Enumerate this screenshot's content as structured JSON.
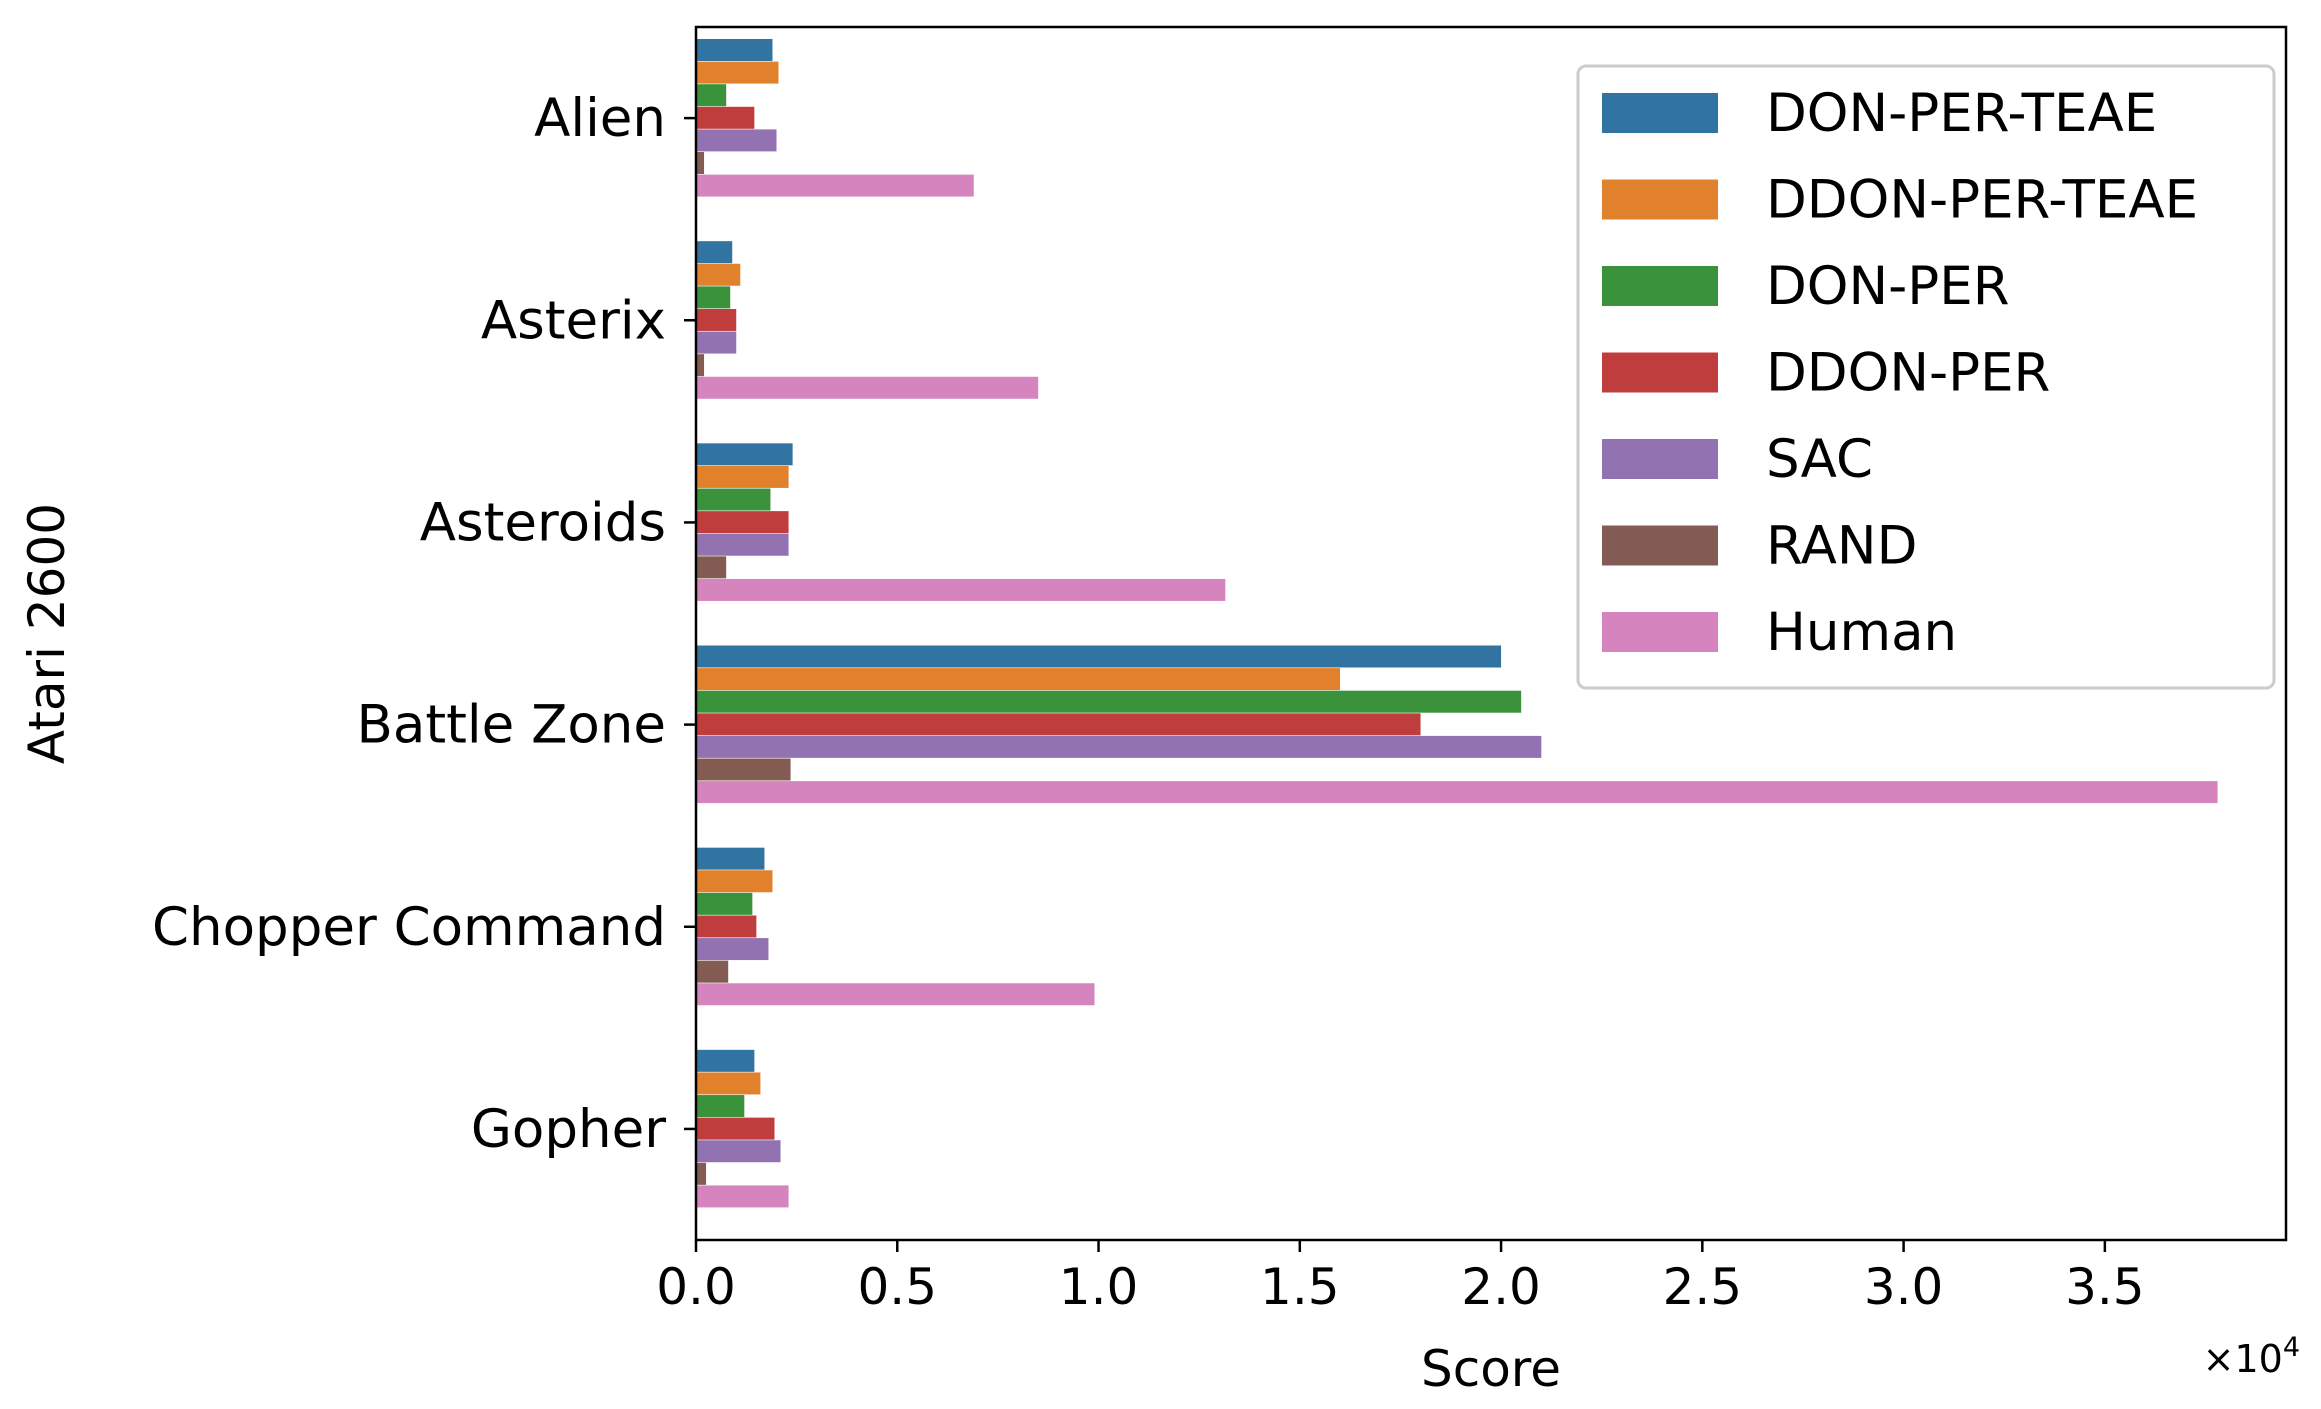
{
  "chart_data": {
    "type": "bar",
    "orientation": "horizontal",
    "ylabel": "Atari 2600",
    "xlabel": "Score",
    "x_multiplier_label": "×10",
    "x_multiplier_exponent": "4",
    "xlim": [
      0,
      39500
    ],
    "x_ticks": [
      0,
      5000,
      10000,
      15000,
      20000,
      25000,
      30000,
      35000
    ],
    "x_tick_labels": [
      "0.0",
      "0.5",
      "1.0",
      "1.5",
      "2.0",
      "2.5",
      "3.0",
      "3.5"
    ],
    "categories": [
      "Alien",
      "Asterix",
      "Asteroids",
      "Battle Zone",
      "Chopper Command",
      "Gopher"
    ],
    "legend_position": "top-right",
    "grid": false,
    "series": [
      {
        "name": "DON-PER-TEAE",
        "color": "#3274a1",
        "values": [
          1900,
          900,
          2400,
          20000,
          1700,
          1450
        ]
      },
      {
        "name": "DDON-PER-TEAE",
        "color": "#e1812c",
        "values": [
          2050,
          1100,
          2300,
          16000,
          1900,
          1600
        ]
      },
      {
        "name": "DON-PER",
        "color": "#3a923a",
        "values": [
          750,
          850,
          1850,
          20500,
          1400,
          1200
        ]
      },
      {
        "name": "DDON-PER",
        "color": "#c03d3e",
        "values": [
          1450,
          1000,
          2300,
          18000,
          1500,
          1950
        ]
      },
      {
        "name": "SAC",
        "color": "#9372b2",
        "values": [
          2000,
          1000,
          2300,
          21000,
          1800,
          2100
        ]
      },
      {
        "name": "RAND",
        "color": "#845b53",
        "values": [
          200,
          200,
          750,
          2350,
          800,
          250
        ]
      },
      {
        "name": "Human",
        "color": "#d684bd",
        "values": [
          6900,
          8500,
          13150,
          37800,
          9900,
          2300
        ]
      }
    ]
  }
}
